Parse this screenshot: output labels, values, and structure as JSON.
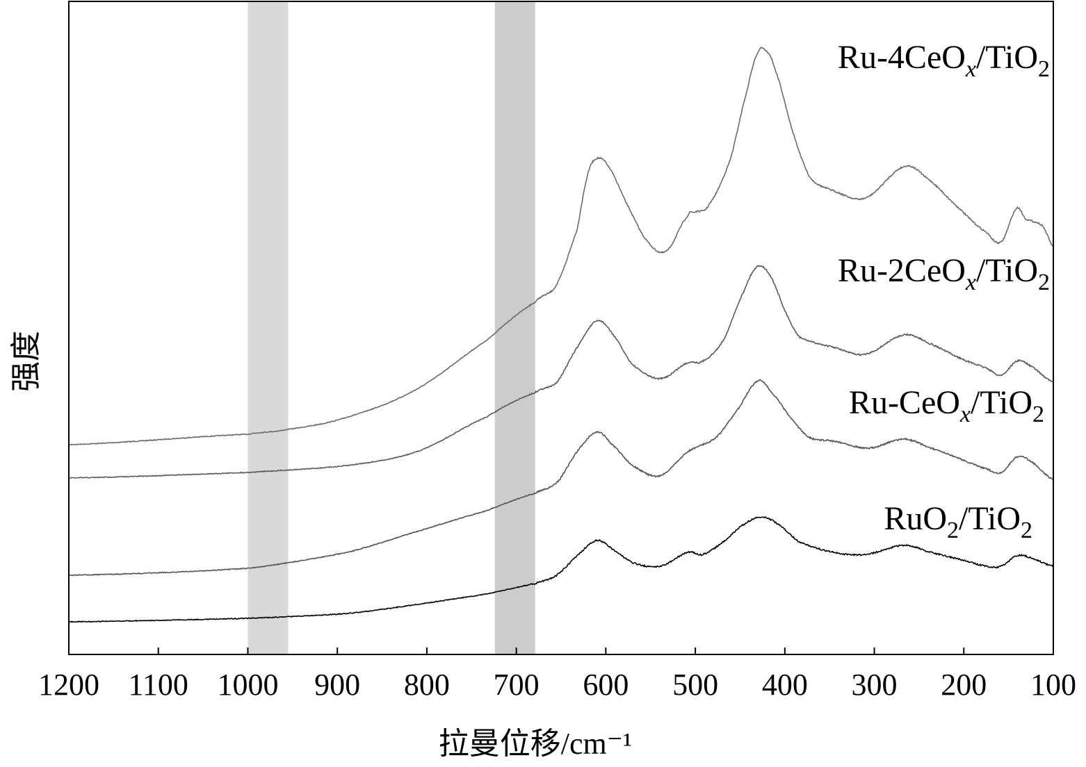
{
  "chart_data": {
    "type": "line",
    "title": "",
    "xlabel": "拉曼位移/cm⁻¹",
    "ylabel": "强度",
    "xlim": [
      1200,
      100
    ],
    "x_reversed": true,
    "ylim": [
      0,
      94
    ],
    "y_ticks_shown": false,
    "grid": false,
    "xticks": [
      1200,
      1100,
      1000,
      900,
      800,
      700,
      600,
      500,
      400,
      300,
      200,
      100
    ],
    "shaded_bands": [
      {
        "range": [
          955,
          1000
        ],
        "color": "#d9d9d9"
      },
      {
        "range": [
          679,
          724
        ],
        "color": "#cccccc"
      }
    ],
    "series": [
      {
        "name": "Ru-4CeOx/TiO2",
        "color": "#6b6b6b",
        "x": [
          1200,
          1000,
          955,
          888,
          811,
          733,
          679,
          655,
          632,
          620,
          610,
          597,
          578,
          555,
          533,
          508,
          500,
          485,
          461,
          442,
          430,
          422,
          411,
          391,
          372,
          345,
          310,
          267,
          243,
          205,
          174,
          158,
          141,
          131,
          112,
          100
        ],
        "y": [
          30.2,
          31.7,
          32.4,
          34.2,
          38.2,
          45.2,
          50.7,
          53.2,
          61.2,
          69.2,
          71.4,
          70.2,
          65.2,
          59.7,
          58,
          63.2,
          63.7,
          64.7,
          71.2,
          81.2,
          86.7,
          87,
          84.2,
          75.2,
          68.7,
          66.7,
          65.7,
          70.2,
          68.7,
          64.2,
          60.7,
          59.4,
          64.2,
          62.7,
          61.7,
          58.7
        ]
      },
      {
        "name": "Ru-2CeOx/TiO2",
        "color": "#5a5a5a",
        "x": [
          1200,
          1000,
          888,
          811,
          733,
          679,
          655,
          632,
          610,
          593,
          570,
          539,
          508,
          492,
          469,
          446,
          430,
          415,
          399,
          384,
          345,
          310,
          267,
          237,
          205,
          174,
          158,
          141,
          128,
          100
        ],
        "y": [
          25.4,
          26.2,
          27.2,
          29.2,
          34.2,
          37.7,
          39.2,
          44.2,
          48,
          46.2,
          41.7,
          39.7,
          42,
          42.2,
          45.2,
          52.2,
          55.9,
          54.2,
          49.2,
          45.7,
          44.2,
          43.2,
          46,
          44.7,
          42.7,
          41.2,
          40.2,
          42.2,
          41.7,
          39.2
        ]
      },
      {
        "name": "Ru-CeOx/TiO2",
        "color": "#555555",
        "x": [
          1200,
          1000,
          888,
          811,
          733,
          679,
          655,
          632,
          610,
          593,
          570,
          540,
          508,
          477,
          453,
          430,
          415,
          391,
          372,
          345,
          306,
          267,
          237,
          205,
          174,
          158,
          141,
          128,
          100
        ],
        "y": [
          11.4,
          12.4,
          14.7,
          17.7,
          20.7,
          23.2,
          24.7,
          29.2,
          32,
          30.2,
          27.2,
          25.7,
          29.2,
          31.2,
          35.2,
          39.4,
          37.7,
          33.7,
          31.2,
          30.7,
          29.7,
          31,
          29.7,
          28.2,
          26.7,
          26.2,
          28.4,
          28,
          25.2
        ]
      },
      {
        "name": "RuO2/TiO2",
        "color": "#000000",
        "x": [
          1200,
          1000,
          888,
          811,
          733,
          679,
          655,
          632,
          610,
          593,
          570,
          539,
          508,
          492,
          469,
          446,
          426,
          407,
          384,
          345,
          310,
          267,
          237,
          205,
          174,
          158,
          141,
          128,
          100
        ],
        "y": [
          4.7,
          5.2,
          5.9,
          7.2,
          8.7,
          10.2,
          11.4,
          14.2,
          16.4,
          15.2,
          13.2,
          12.7,
          14.7,
          14.4,
          16.2,
          18.7,
          19.8,
          18.7,
          16.2,
          14.7,
          14.4,
          15.7,
          14.7,
          13.7,
          12.7,
          12.7,
          14.2,
          14,
          12.7
        ]
      }
    ]
  }
}
